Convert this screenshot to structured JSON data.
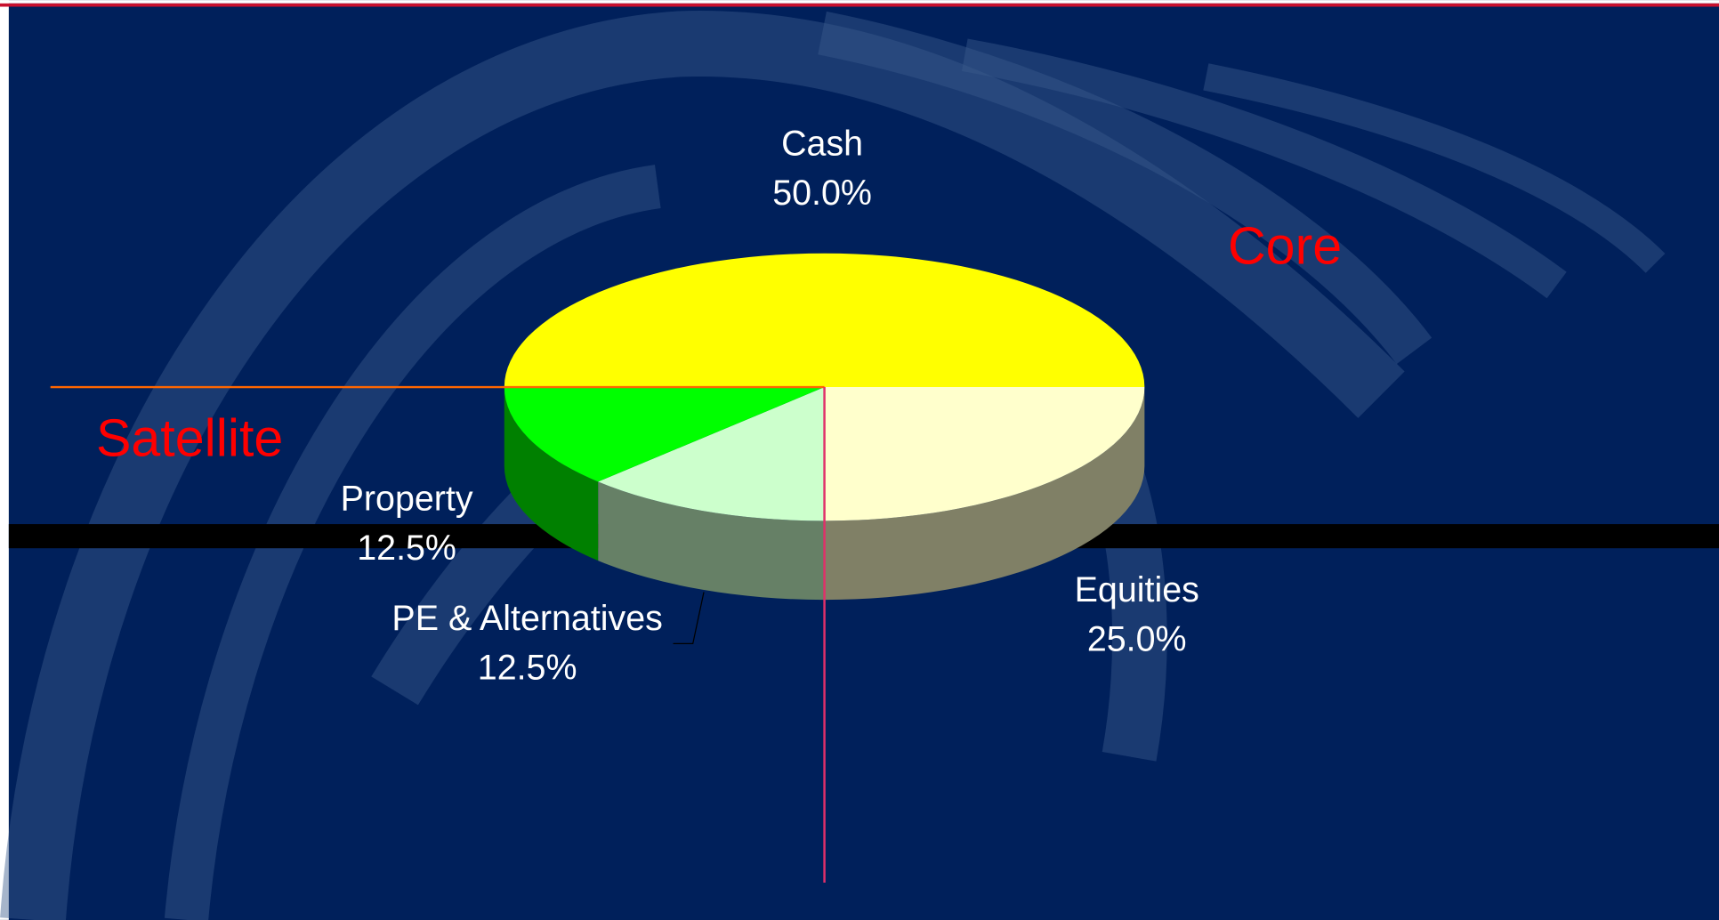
{
  "chart_data": {
    "type": "pie3d",
    "categories": [
      "Cash",
      "Equities",
      "PE & Alternatives",
      "Property"
    ],
    "values": [
      50.0,
      25.0,
      12.5,
      12.5
    ],
    "value_labels": [
      "50.0%",
      "25.0%",
      "12.5%",
      "12.5%"
    ],
    "colors": [
      "#ffff00",
      "#ffffcc",
      "#ccffcc",
      "#00ff00"
    ],
    "annotations": [
      "Core",
      "Satellite"
    ]
  }
}
